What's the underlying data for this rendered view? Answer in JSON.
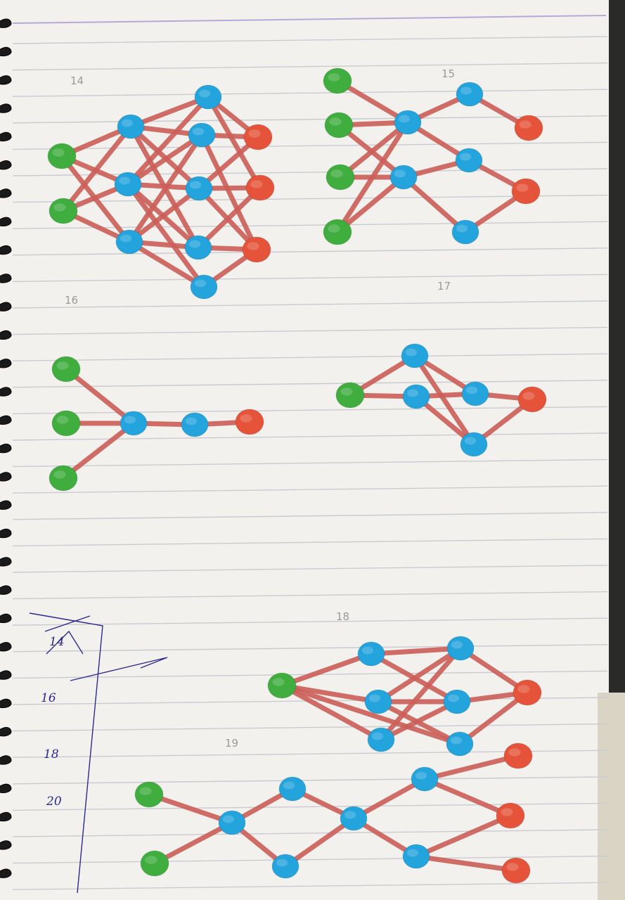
{
  "palette": {
    "paper": "#f2f1ee",
    "rule": "#c9cbd2",
    "margin_rule": "#b8a8d8",
    "edge": "#cc5e58",
    "input_node": "#3fae3f",
    "hidden_node": "#24a4dc",
    "output_node": "#e5533a",
    "pencil": "#9a9a9a",
    "pen": "#2d2a8a"
  },
  "diagrams": [
    {
      "label": "14",
      "inputs": [
        "i1",
        "i2"
      ],
      "hidden": [
        "a1",
        "a2",
        "a3",
        "b1",
        "b2",
        "b3",
        "b4",
        "b5"
      ],
      "outputs": [
        "o1",
        "o2",
        "o3"
      ]
    },
    {
      "label": "15",
      "inputs": [
        "i1",
        "i2",
        "i3",
        "i4"
      ],
      "hidden": [
        "a1",
        "a2",
        "b1",
        "b2",
        "b3"
      ],
      "outputs": [
        "o1",
        "o2"
      ]
    },
    {
      "label": "16",
      "inputs": [
        "i1",
        "i2",
        "i3"
      ],
      "hidden": [
        "h1",
        "h2"
      ],
      "outputs": [
        "o1"
      ]
    },
    {
      "label": "17",
      "inputs": [
        "i1"
      ],
      "hidden": [
        "h1",
        "h2",
        "h3",
        "h4"
      ],
      "outputs": [
        "o1"
      ]
    },
    {
      "label": "18",
      "inputs": [
        "i1"
      ],
      "hidden": [
        "a1",
        "a2",
        "a3",
        "b1",
        "b2",
        "b3"
      ],
      "outputs": [
        "o1"
      ]
    },
    {
      "label": "19",
      "inputs": [
        "i1",
        "i2"
      ],
      "hidden": [
        "a",
        "b1",
        "b2",
        "c",
        "d1",
        "d2"
      ],
      "outputs": [
        "o1",
        "o2",
        "o3"
      ]
    }
  ],
  "margin_notes": [
    "14",
    "16",
    "18",
    "20"
  ]
}
